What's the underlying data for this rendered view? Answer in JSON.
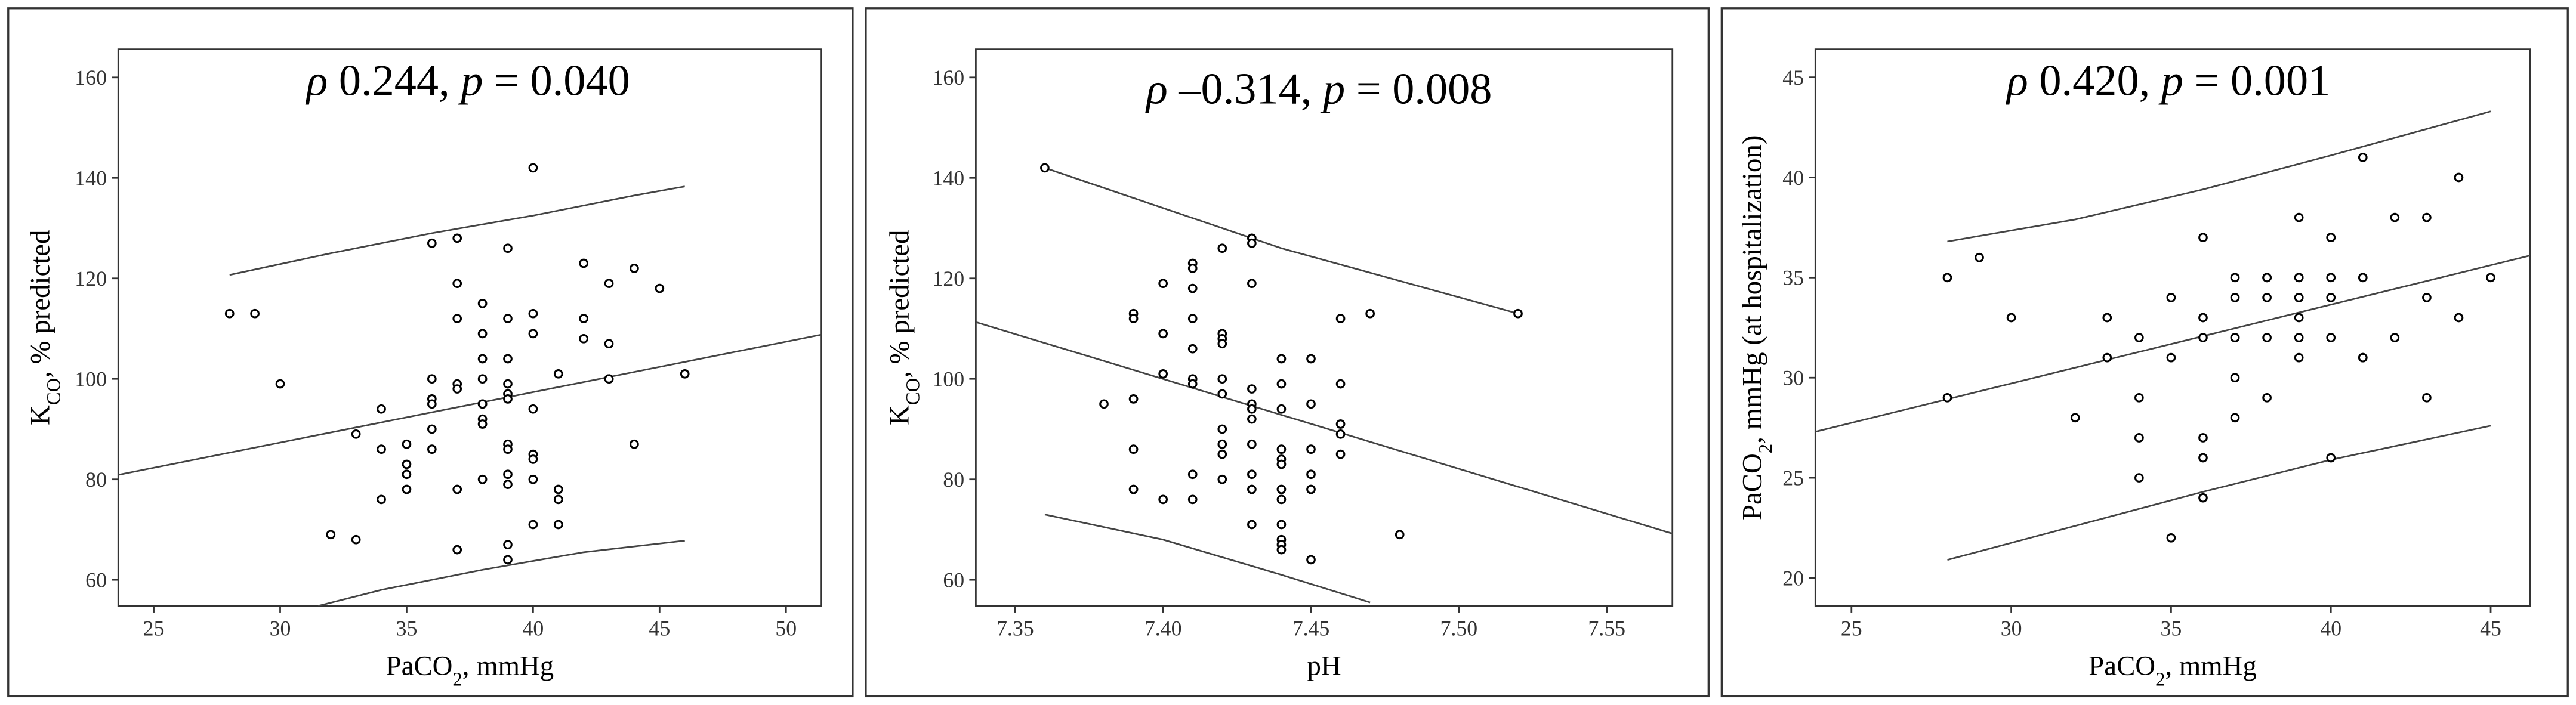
{
  "chart_data": [
    {
      "type": "scatter",
      "color": "#000000",
      "line_color": "#444444",
      "annotation": [
        "ρ",
        " 0.244, ",
        "p",
        " = 0.040"
      ],
      "xlabel": [
        "PaCO",
        "2",
        ", mmHg"
      ],
      "ylabel": [
        "K",
        "CO",
        ", % predicted"
      ],
      "xlim": [
        23.6,
        51.4
      ],
      "ylim": [
        54.8,
        165.6
      ],
      "xticks": [
        25,
        30,
        35,
        40,
        45,
        50
      ],
      "yticks": [
        60,
        80,
        100,
        120,
        140,
        160
      ],
      "x": [
        28,
        29,
        30,
        32,
        33,
        33,
        34,
        34,
        34,
        35,
        35,
        35,
        35,
        36,
        36,
        36,
        36,
        36,
        36,
        37,
        37,
        37,
        37,
        37,
        37,
        37,
        38,
        38,
        38,
        38,
        38,
        38,
        38,
        38,
        38,
        39,
        39,
        39,
        39,
        39,
        39,
        39,
        39,
        39,
        39,
        39,
        39,
        40,
        40,
        40,
        40,
        40,
        40,
        40,
        40,
        41,
        41,
        41,
        41,
        42,
        42,
        42,
        43,
        43,
        43,
        43,
        44,
        44,
        45,
        46
      ],
      "values": [
        113,
        113,
        99,
        69,
        68,
        89,
        94,
        86,
        76,
        87,
        83,
        81,
        78,
        127,
        100,
        96,
        95,
        90,
        86,
        128,
        119,
        112,
        99,
        98,
        78,
        66,
        115,
        109,
        104,
        100,
        95,
        95,
        92,
        91,
        80,
        126,
        112,
        104,
        99,
        97,
        96,
        87,
        86,
        81,
        79,
        67,
        64,
        142,
        113,
        109,
        94,
        85,
        84,
        80,
        71,
        101,
        78,
        76,
        71,
        123,
        112,
        108,
        119,
        107,
        100,
        100,
        122,
        87,
        118,
        101
      ],
      "fit_lines": [
        {
          "x": [
            23.6,
            51.4
          ],
          "values": [
            80.9,
            108.8
          ]
        },
        {
          "x": [
            28,
            32,
            36,
            40,
            44,
            46
          ],
          "values": [
            120.7,
            125,
            129,
            132.5,
            136.5,
            138.3
          ]
        },
        {
          "x": [
            31.5,
            34,
            38,
            42,
            46
          ],
          "values": [
            54.8,
            58,
            62,
            65.5,
            67.8
          ]
        }
      ]
    },
    {
      "type": "scatter",
      "color": "#000000",
      "line_color": "#444444",
      "annotation": [
        "ρ",
        " –0.314, ",
        "p",
        " = 0.008"
      ],
      "xlabel": [
        "pH"
      ],
      "ylabel": [
        "K",
        "CO",
        ", % predicted"
      ],
      "xlim": [
        7.3367,
        7.5722
      ],
      "ylim": [
        54.8,
        165.6
      ],
      "xticks": [
        7.35,
        {
          "value": 7.4,
          "label": "7.40"
        },
        7.45,
        {
          "value": 7.5,
          "label": "7.50"
        },
        7.55
      ],
      "yticks": [
        60,
        80,
        100,
        120,
        140,
        160
      ],
      "x": [
        7.36,
        7.38,
        7.39,
        7.39,
        7.39,
        7.39,
        7.39,
        7.4,
        7.4,
        7.4,
        7.4,
        7.41,
        7.41,
        7.41,
        7.41,
        7.41,
        7.41,
        7.41,
        7.41,
        7.41,
        7.42,
        7.42,
        7.42,
        7.42,
        7.42,
        7.42,
        7.42,
        7.42,
        7.42,
        7.42,
        7.43,
        7.43,
        7.43,
        7.43,
        7.43,
        7.43,
        7.43,
        7.43,
        7.43,
        7.43,
        7.43,
        7.44,
        7.44,
        7.44,
        7.44,
        7.44,
        7.44,
        7.44,
        7.44,
        7.44,
        7.44,
        7.44,
        7.44,
        7.45,
        7.45,
        7.45,
        7.45,
        7.45,
        7.45,
        7.46,
        7.46,
        7.46,
        7.46,
        7.46,
        7.47,
        7.48,
        7.52
      ],
      "values": [
        142,
        95,
        113,
        112,
        96,
        86,
        78,
        119,
        109,
        101,
        76,
        123,
        122,
        118,
        112,
        106,
        100,
        99,
        81,
        76,
        126,
        109,
        108,
        107,
        100,
        97,
        90,
        87,
        85,
        80,
        128,
        127,
        119,
        98,
        95,
        94,
        92,
        87,
        81,
        78,
        71,
        104,
        99,
        94,
        86,
        84,
        83,
        78,
        76,
        71,
        68,
        67,
        66,
        104,
        95,
        86,
        81,
        78,
        64,
        112,
        99,
        91,
        89,
        85,
        113,
        69,
        113
      ],
      "fit_lines": [
        {
          "x": [
            7.3367,
            7.5722
          ],
          "values": [
            111.3,
            69.2
          ]
        },
        {
          "x": [
            7.36,
            7.4,
            7.44,
            7.48,
            7.52
          ],
          "values": [
            142,
            134,
            126,
            119.5,
            113
          ]
        },
        {
          "x": [
            7.36,
            7.4,
            7.44,
            7.47
          ],
          "values": [
            73,
            68,
            61,
            55.5
          ]
        }
      ]
    },
    {
      "type": "scatter",
      "color": "#000000",
      "line_color": "#444444",
      "annotation": [
        "ρ",
        " 0.420, ",
        "p",
        " = 0.001"
      ],
      "xlabel": [
        "PaCO",
        "2",
        ", mmHg"
      ],
      "ylabel": [
        "PaCO",
        "2",
        ", mmHg (at hospitalization)"
      ],
      "xlim": [
        23.87,
        46.23
      ],
      "ylim": [
        18.6,
        46.4
      ],
      "xticks": [
        25,
        30,
        35,
        40,
        45
      ],
      "yticks": [
        20,
        25,
        30,
        35,
        40,
        45
      ],
      "x": [
        28,
        28,
        29,
        30,
        32,
        33,
        33,
        34,
        34,
        34,
        34,
        34,
        35,
        35,
        35,
        36,
        36,
        36,
        36,
        36,
        36,
        37,
        37,
        37,
        37,
        37,
        37,
        38,
        38,
        38,
        38,
        38,
        39,
        39,
        39,
        39,
        39,
        39,
        39,
        39,
        40,
        40,
        40,
        40,
        40,
        40,
        41,
        41,
        41,
        41,
        42,
        42,
        43,
        43,
        43,
        44,
        44,
        45
      ],
      "values": [
        35,
        29,
        36,
        33,
        28,
        33,
        31,
        32,
        29,
        27,
        27,
        25,
        34,
        31,
        22,
        37,
        33,
        32,
        27,
        26,
        24,
        35,
        34,
        32,
        32,
        30,
        28,
        35,
        35,
        34,
        32,
        29,
        38,
        35,
        35,
        34,
        34,
        33,
        32,
        31,
        37,
        37,
        35,
        34,
        32,
        26,
        41,
        35,
        31,
        31,
        38,
        32,
        38,
        34,
        29,
        40,
        33,
        35
      ],
      "fit_lines": [
        {
          "x": [
            23.87,
            46.23
          ],
          "values": [
            27.3,
            36.1
          ]
        },
        {
          "x": [
            28,
            32,
            36,
            40,
            45
          ],
          "values": [
            36.8,
            37.9,
            39.4,
            41.1,
            43.3
          ]
        },
        {
          "x": [
            28,
            32,
            36,
            40,
            45
          ],
          "values": [
            20.9,
            22.6,
            24.3,
            25.9,
            27.6
          ]
        }
      ]
    }
  ]
}
